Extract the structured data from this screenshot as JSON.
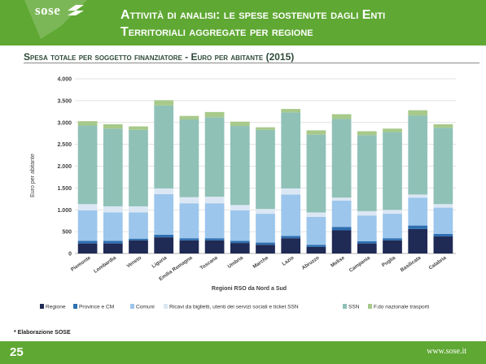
{
  "brand": {
    "logo_text": "sose"
  },
  "slide": {
    "title_line1": "Attività di analisi: le spese sostenute dagli Enti",
    "title_line2": "Territoriali aggregate per regione",
    "subtitle": "Spesa totale per soggetto finanziatore - Euro per abitante (2015)",
    "note": "* Elaborazione SOSE",
    "page_number": "25",
    "website": "www.sose.it"
  },
  "colors": {
    "header_green": "#5fa833",
    "Regione": "#1f2a55",
    "Province e CM": "#2e6fb0",
    "Comuni": "#9cc6ec",
    "Ricavi": "#dbe7f4",
    "SSN": "#8fc1b7",
    "F.do nazionale trasporti": "#a7c98a"
  },
  "chart_data": {
    "type": "bar",
    "stacked": true,
    "title": "",
    "xlabel": "Regioni RSO da Nord a Sud",
    "ylabel": "Euro per abitante",
    "ylim": [
      0,
      4000
    ],
    "yticks": [
      0,
      500,
      1000,
      1500,
      2000,
      2500,
      3000,
      3500,
      4000
    ],
    "ytick_labels": [
      "0",
      "500",
      "1.000",
      "1.500",
      "2.000",
      "2.500",
      "3.000",
      "3.500",
      "4.000"
    ],
    "grid": true,
    "legend_position": "bottom",
    "categories": [
      "Piemonte",
      "Lombardia",
      "Veneto",
      "Liguria",
      "Emilia Romagna",
      "Toscana",
      "Umbria",
      "Marche",
      "Lazio",
      "Abruzzo",
      "Molise",
      "Campania",
      "Puglia",
      "Basilicata",
      "Calabria"
    ],
    "series": [
      {
        "name": "Regione",
        "values": [
          230,
          230,
          300,
          370,
          300,
          300,
          240,
          200,
          350,
          150,
          530,
          230,
          300,
          560,
          390
        ]
      },
      {
        "name": "Province e CM",
        "values": [
          60,
          60,
          40,
          60,
          50,
          50,
          50,
          50,
          50,
          50,
          80,
          50,
          50,
          80,
          60
        ]
      },
      {
        "name": "Comuni",
        "values": [
          700,
          650,
          600,
          930,
          800,
          800,
          700,
          660,
          950,
          640,
          600,
          590,
          560,
          640,
          600
        ]
      },
      {
        "name": "Ricavi da biglietti, utenti dei servizi sociali e ticket SSN",
        "values": [
          140,
          140,
          140,
          130,
          140,
          150,
          120,
          110,
          140,
          100,
          70,
          100,
          90,
          70,
          80
        ]
      },
      {
        "name": "SSN",
        "values": [
          1800,
          1780,
          1750,
          1900,
          1780,
          1820,
          1810,
          1810,
          1740,
          1780,
          1800,
          1740,
          1780,
          1810,
          1750
        ]
      },
      {
        "name": "F.do nazionale trasporti",
        "values": [
          100,
          100,
          80,
          120,
          80,
          120,
          100,
          60,
          80,
          100,
          110,
          90,
          80,
          120,
          80
        ]
      }
    ]
  }
}
